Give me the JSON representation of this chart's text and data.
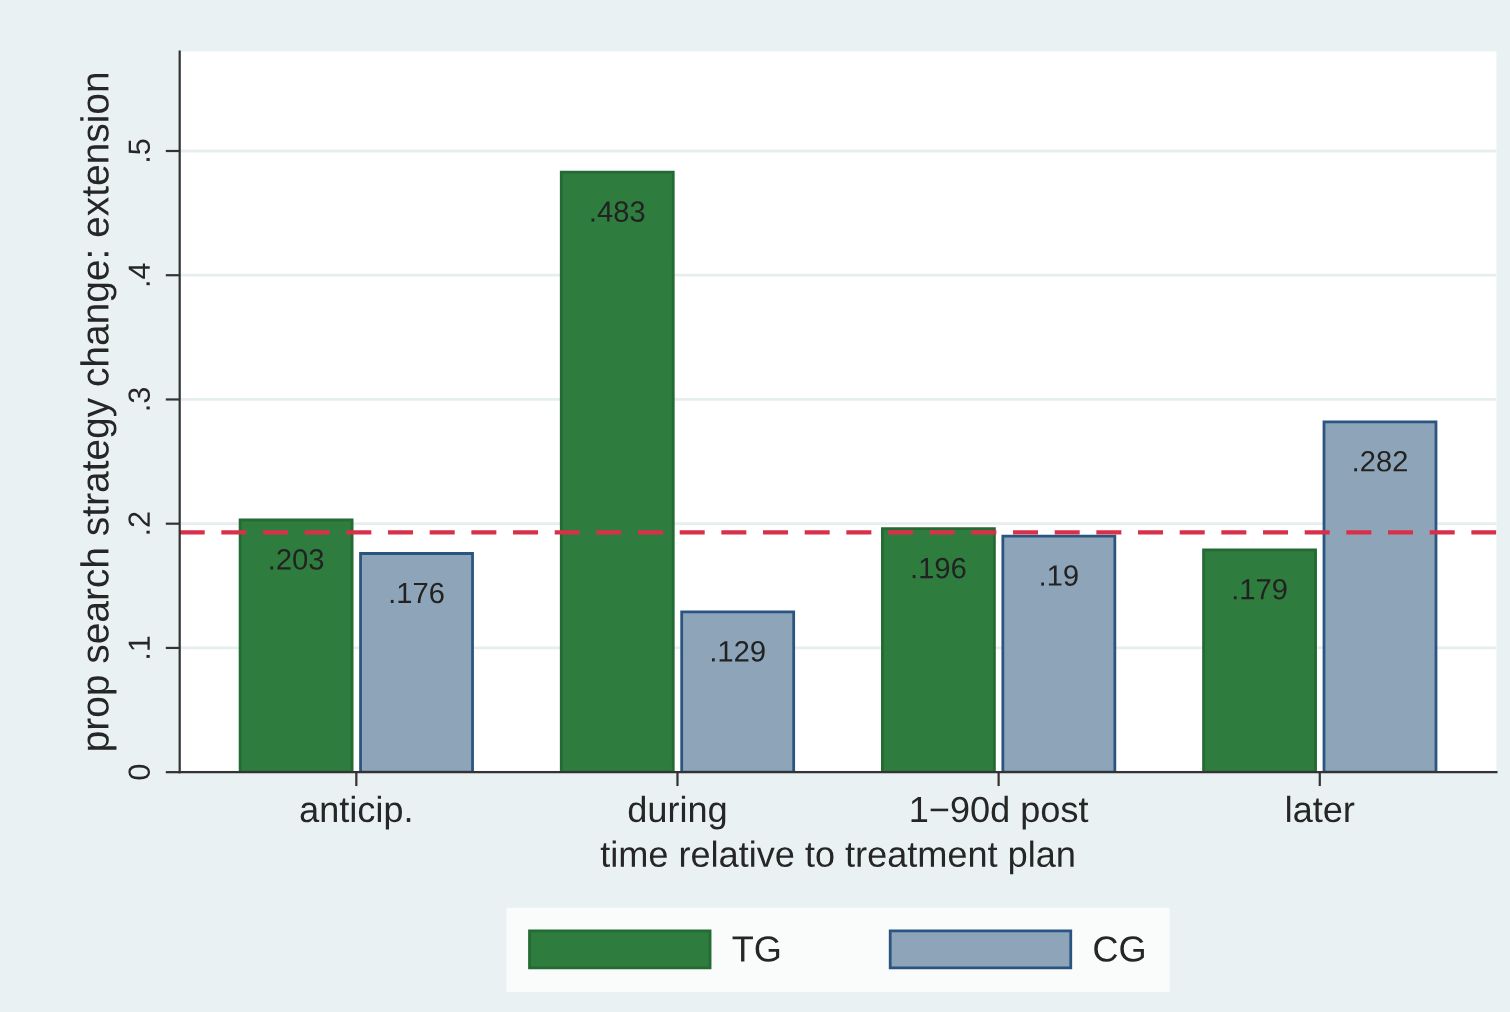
{
  "chart_data": {
    "type": "bar",
    "xlabel": "time relative to treatment plan",
    "ylabel": "prop search strategy change: extension",
    "categories": [
      "anticip.",
      "during",
      "1−90d post",
      "later"
    ],
    "series": [
      {
        "name": "TG",
        "color": "#2e7d3e",
        "values": [
          0.203,
          0.483,
          0.196,
          0.179
        ],
        "value_labels": [
          ".203",
          ".483",
          ".196",
          ".179"
        ]
      },
      {
        "name": "CG",
        "color": "#8ea4b8",
        "values": [
          0.176,
          0.129,
          0.19,
          0.282
        ],
        "value_labels": [
          ".176",
          ".129",
          ".19",
          ".282"
        ]
      }
    ],
    "ylim": [
      0,
      0.58
    ],
    "yticks": [
      0,
      {
        "value": 0.1,
        "label": ".1"
      },
      {
        "value": 0.2,
        "label": ".2"
      },
      {
        "value": 0.3,
        "label": ".3"
      },
      {
        "value": 0.4,
        "label": ".4"
      },
      {
        "value": 0.5,
        "label": ".5"
      }
    ],
    "ref_lines": [
      {
        "axis": "y",
        "value": 0.193,
        "color": "#d9304a",
        "line_style": "dashed"
      }
    ],
    "grid": "y",
    "legend": "bottom"
  }
}
